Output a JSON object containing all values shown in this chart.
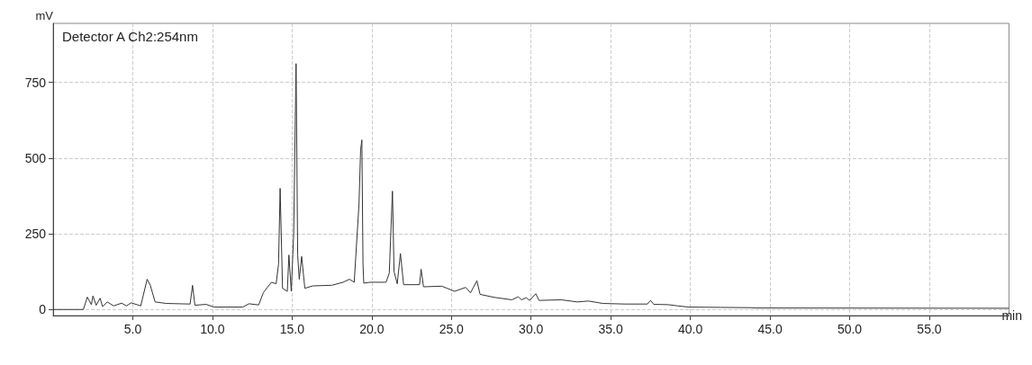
{
  "chart_data": {
    "type": "line",
    "title": "Detector A Ch2:254nm",
    "xlabel": "min",
    "ylabel": "mV",
    "x": [
      0,
      1.9,
      2.15,
      2.4,
      2.5,
      2.7,
      2.95,
      3.1,
      3.4,
      3.8,
      4.3,
      4.6,
      4.9,
      5.5,
      5.9,
      6.1,
      6.4,
      7.1,
      8.6,
      8.75,
      8.9,
      9.6,
      10.1,
      11.9,
      12.3,
      12.9,
      13.2,
      13.7,
      14.0,
      14.15,
      14.25,
      14.4,
      14.7,
      14.8,
      14.95,
      15.1,
      15.25,
      15.35,
      15.45,
      15.6,
      15.8,
      16.3,
      17.5,
      18.2,
      18.6,
      18.9,
      19.2,
      19.3,
      19.38,
      19.45,
      19.5,
      19.9,
      20.9,
      21.1,
      21.3,
      21.4,
      21.6,
      21.8,
      22.0,
      23.0,
      23.1,
      23.25,
      24.4,
      25.2,
      25.9,
      26.2,
      26.6,
      26.8,
      27.7,
      28.8,
      29.2,
      29.4,
      29.7,
      29.9,
      30.3,
      30.5,
      31.9,
      32.9,
      33.6,
      34.5,
      35.9,
      37.3,
      37.5,
      37.7,
      38.6,
      39.2,
      39.9,
      41.9,
      43.8,
      44.1,
      60
    ],
    "values": [
      0,
      0,
      41,
      16,
      45,
      14,
      37,
      10,
      25,
      12,
      21,
      12,
      22,
      12,
      100,
      80,
      25,
      20,
      18,
      80,
      14,
      17,
      8,
      8,
      19,
      15,
      56,
      90,
      85,
      150,
      400,
      70,
      60,
      180,
      60,
      250,
      812,
      180,
      100,
      175,
      70,
      78,
      80,
      90,
      100,
      90,
      348,
      527,
      560,
      152,
      87,
      90,
      90,
      120,
      391,
      125,
      85,
      185,
      82,
      82,
      133,
      75,
      77,
      60,
      73,
      55,
      95,
      50,
      40,
      32,
      42,
      32,
      39,
      30,
      52,
      30,
      32,
      25,
      28,
      20,
      18,
      18,
      30,
      17,
      16,
      12,
      8,
      7,
      6,
      5,
      4
    ],
    "color": "#333333",
    "xlim": [
      0,
      60
    ],
    "ylim": [
      -20,
      945
    ],
    "xticks": [
      {
        "value": 5,
        "label": "5.0"
      },
      {
        "value": 10,
        "label": "10.0"
      },
      {
        "value": 15,
        "label": "15.0"
      },
      {
        "value": 20,
        "label": "20.0"
      },
      {
        "value": 25,
        "label": "25.0"
      },
      {
        "value": 30,
        "label": "30.0"
      },
      {
        "value": 35,
        "label": "35.0"
      },
      {
        "value": 40,
        "label": "40.0"
      },
      {
        "value": 45,
        "label": "45.0"
      },
      {
        "value": 50,
        "label": "50.0"
      },
      {
        "value": 55,
        "label": "55.0"
      }
    ],
    "yticks": [
      0,
      250,
      500,
      750
    ],
    "grid": true,
    "marker": "none",
    "line_style": "solid"
  }
}
